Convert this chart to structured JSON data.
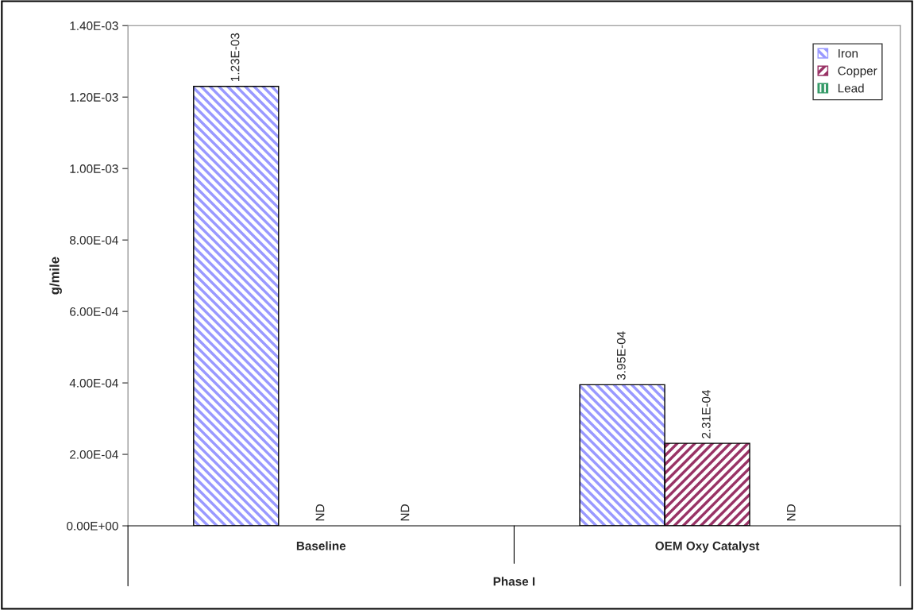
{
  "chart_data": {
    "type": "bar",
    "ylabel": "g/mile",
    "xlabel": "Phase I",
    "categories": [
      "Baseline",
      "OEM Oxy Catalyst"
    ],
    "series": [
      {
        "name": "Iron",
        "color": "#9999ff",
        "values": [
          0.00123,
          0.000395
        ],
        "value_labels": [
          "1.23E-03",
          "3.95E-04"
        ]
      },
      {
        "name": "Copper",
        "color": "#993366",
        "values": [
          null,
          0.000231
        ],
        "value_labels": [
          "ND",
          "2.31E-04"
        ]
      },
      {
        "name": "Lead",
        "color": "#339966",
        "values": [
          null,
          null
        ],
        "value_labels": [
          "ND",
          "ND"
        ]
      }
    ],
    "ylim": [
      0,
      0.0014
    ],
    "yticks": [
      {
        "value": 0,
        "label": "0.00E+00"
      },
      {
        "value": 0.0002,
        "label": "2.00E-04"
      },
      {
        "value": 0.0004,
        "label": "4.00E-04"
      },
      {
        "value": 0.0006,
        "label": "6.00E-04"
      },
      {
        "value": 0.0008,
        "label": "8.00E-04"
      },
      {
        "value": 0.001,
        "label": "1.00E-03"
      },
      {
        "value": 0.0012,
        "label": "1.20E-03"
      },
      {
        "value": 0.0014,
        "label": "1.40E-03"
      }
    ],
    "grid": false,
    "legend": "top right"
  }
}
